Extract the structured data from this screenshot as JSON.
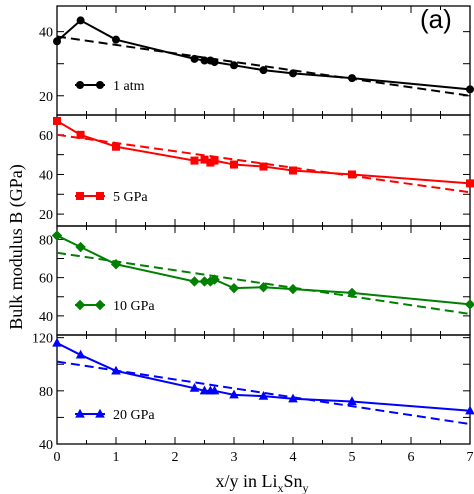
{
  "panel_label": "(a)",
  "chart_data": {
    "type": "line",
    "ylabel": "Bulk modulus B (GPa)",
    "xlabel_prefix": "x/y in Li",
    "xlabel_sub1": "x",
    "xlabel_mid": "Sn",
    "xlabel_sub2": "y",
    "xlim": [
      0,
      7
    ],
    "xticks": [
      0,
      1,
      2,
      3,
      4,
      5,
      6,
      7
    ],
    "xtick_labels": [
      "0",
      "1",
      "2",
      "3",
      "4",
      "5",
      "6",
      "7"
    ],
    "panels": [
      {
        "legend": "1 atm",
        "color": "#000000",
        "marker": "circle",
        "ylim": [
          14,
          48
        ],
        "yticks": [
          20,
          30,
          40
        ],
        "ytick_labels": [
          "20",
          "",
          "40"
        ],
        "x": [
          0,
          0.4,
          1,
          2.33,
          2.5,
          2.6,
          2.67,
          3,
          3.5,
          4,
          5,
          7
        ],
        "y": [
          37,
          43.5,
          37.5,
          31.5,
          31,
          31,
          30.5,
          29.5,
          28,
          27,
          25.5,
          22
        ],
        "fit": [
          [
            0,
            38.5
          ],
          [
            7,
            20
          ]
        ]
      },
      {
        "legend": "5 GPa",
        "color": "#ff0000",
        "marker": "square",
        "ylim": [
          14,
          70
        ],
        "yticks": [
          20,
          30,
          40,
          50,
          60
        ],
        "ytick_labels": [
          "20",
          "",
          "40",
          "",
          "60"
        ],
        "x": [
          0,
          0.4,
          1,
          2.33,
          2.5,
          2.6,
          2.67,
          3,
          3.5,
          4,
          5,
          7
        ],
        "y": [
          67,
          60,
          54,
          47,
          47.5,
          46,
          47,
          45,
          44,
          42,
          40,
          35.5
        ],
        "fit": [
          [
            0,
            60
          ],
          [
            7,
            31
          ]
        ]
      },
      {
        "legend": "10 GPa",
        "color": "#008000",
        "marker": "diamond",
        "ylim": [
          30,
          87
        ],
        "yticks": [
          40,
          50,
          60,
          70,
          80
        ],
        "ytick_labels": [
          "40",
          "",
          "60",
          "",
          "80"
        ],
        "x": [
          0,
          0.4,
          1,
          2.33,
          2.5,
          2.6,
          2.67,
          3,
          3.5,
          4,
          5,
          7
        ],
        "y": [
          82,
          76,
          67,
          58,
          58,
          58,
          59,
          54.5,
          55,
          54,
          52,
          46
        ],
        "fit": [
          [
            0,
            73
          ],
          [
            7,
            41
          ]
        ]
      },
      {
        "legend": "20 GPa",
        "color": "#0000ff",
        "marker": "triangle",
        "ylim": [
          40,
          122
        ],
        "yticks": [
          40,
          60,
          80,
          100,
          120
        ],
        "ytick_labels": [
          "40",
          "",
          "80",
          "",
          "120"
        ],
        "x": [
          0,
          0.4,
          1,
          2.33,
          2.5,
          2.6,
          2.67,
          3,
          3.5,
          4,
          5,
          7
        ],
        "y": [
          116,
          107,
          95,
          82,
          80,
          80,
          80,
          77,
          76,
          74,
          72,
          65
        ],
        "fit": [
          [
            0,
            102
          ],
          [
            7,
            55
          ]
        ]
      }
    ]
  }
}
